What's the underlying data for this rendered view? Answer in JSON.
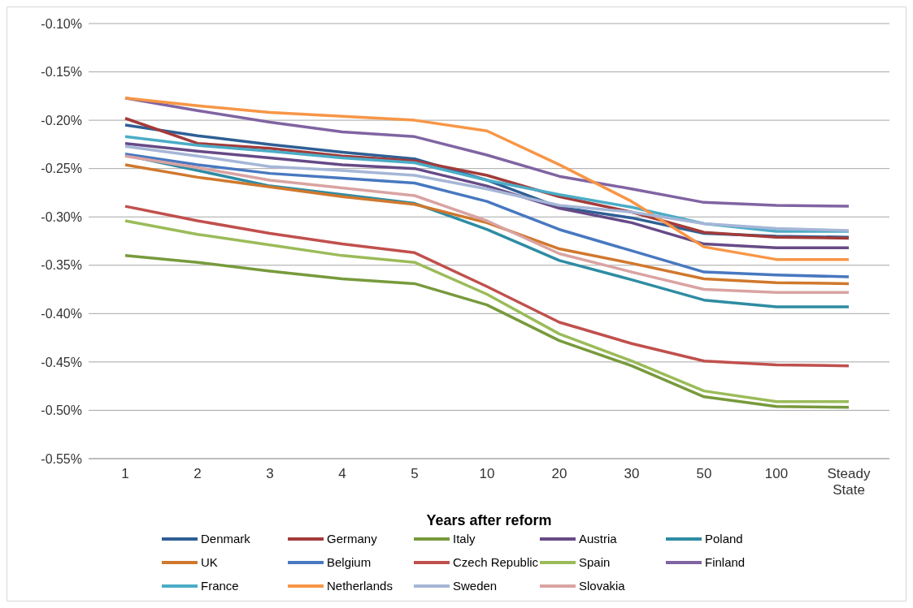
{
  "chart_data": {
    "type": "line",
    "xlabel": "Years after reform",
    "categories": [
      "1",
      "2",
      "3",
      "4",
      "5",
      "10",
      "20",
      "30",
      "50",
      "100",
      "Steady State"
    ],
    "ylim": [
      -0.55,
      -0.1
    ],
    "yticks": [
      {
        "value": -0.1,
        "label": "-0.10%"
      },
      {
        "value": -0.15,
        "label": "-0.15%"
      },
      {
        "value": -0.2,
        "label": "-0.20%"
      },
      {
        "value": -0.25,
        "label": "-0.25%"
      },
      {
        "value": -0.3,
        "label": "-0.30%"
      },
      {
        "value": -0.35,
        "label": "-0.35%"
      },
      {
        "value": -0.4,
        "label": "-0.40%"
      },
      {
        "value": -0.45,
        "label": "-0.45%"
      },
      {
        "value": -0.5,
        "label": "-0.50%"
      },
      {
        "value": -0.55,
        "label": "-0.55%"
      }
    ],
    "grid": "y",
    "legend": "bottom",
    "marker": "none",
    "line_style": "solid",
    "series": [
      {
        "name": "Denmark",
        "color": "#2e5f95",
        "values": [
          -0.205,
          -0.216,
          -0.225,
          -0.233,
          -0.24,
          -0.262,
          -0.29,
          -0.301,
          -0.317,
          -0.32,
          -0.321
        ]
      },
      {
        "name": "Germany",
        "color": "#a33b3a",
        "values": [
          -0.198,
          -0.224,
          -0.229,
          -0.237,
          -0.242,
          -0.257,
          -0.279,
          -0.295,
          -0.316,
          -0.321,
          -0.322
        ]
      },
      {
        "name": "Italy",
        "color": "#779a3c",
        "values": [
          -0.34,
          -0.347,
          -0.356,
          -0.364,
          -0.369,
          -0.391,
          -0.428,
          -0.454,
          -0.486,
          -0.496,
          -0.497
        ]
      },
      {
        "name": "Austria",
        "color": "#664a86",
        "values": [
          -0.224,
          -0.232,
          -0.239,
          -0.246,
          -0.25,
          -0.268,
          -0.291,
          -0.306,
          -0.328,
          -0.332,
          -0.332
        ]
      },
      {
        "name": "Poland",
        "color": "#2e8ca3",
        "values": [
          -0.236,
          -0.252,
          -0.268,
          -0.277,
          -0.286,
          -0.313,
          -0.345,
          -0.365,
          -0.386,
          -0.393,
          -0.393
        ]
      },
      {
        "name": "UK",
        "color": "#d0782d",
        "values": [
          -0.246,
          -0.259,
          -0.269,
          -0.279,
          -0.287,
          -0.306,
          -0.333,
          -0.348,
          -0.364,
          -0.368,
          -0.369
        ]
      },
      {
        "name": "Belgium",
        "color": "#4878c0",
        "values": [
          -0.235,
          -0.246,
          -0.255,
          -0.26,
          -0.265,
          -0.284,
          -0.313,
          -0.335,
          -0.357,
          -0.36,
          -0.362
        ]
      },
      {
        "name": "Czech Republic",
        "color": "#c0504d",
        "values": [
          -0.289,
          -0.304,
          -0.317,
          -0.328,
          -0.337,
          -0.372,
          -0.409,
          -0.431,
          -0.449,
          -0.453,
          -0.454
        ]
      },
      {
        "name": "Spain",
        "color": "#9bbb59",
        "values": [
          -0.304,
          -0.318,
          -0.329,
          -0.34,
          -0.347,
          -0.38,
          -0.421,
          -0.449,
          -0.48,
          -0.491,
          -0.491
        ]
      },
      {
        "name": "Finland",
        "color": "#8064a2",
        "values": [
          -0.177,
          -0.19,
          -0.202,
          -0.212,
          -0.217,
          -0.236,
          -0.258,
          -0.271,
          -0.285,
          -0.288,
          -0.289
        ]
      },
      {
        "name": "France",
        "color": "#4bacc6",
        "values": [
          -0.217,
          -0.226,
          -0.232,
          -0.239,
          -0.244,
          -0.262,
          -0.277,
          -0.29,
          -0.307,
          -0.315,
          -0.315
        ]
      },
      {
        "name": "Netherlands",
        "color": "#f79646",
        "values": [
          -0.177,
          -0.185,
          -0.192,
          -0.196,
          -0.2,
          -0.211,
          -0.246,
          -0.284,
          -0.331,
          -0.344,
          -0.344
        ]
      },
      {
        "name": "Sweden",
        "color": "#a5b6d7",
        "values": [
          -0.227,
          -0.237,
          -0.248,
          -0.252,
          -0.257,
          -0.271,
          -0.288,
          -0.295,
          -0.307,
          -0.312,
          -0.314
        ]
      },
      {
        "name": "Slovakia",
        "color": "#d9a3a2",
        "values": [
          -0.237,
          -0.249,
          -0.262,
          -0.27,
          -0.278,
          -0.304,
          -0.338,
          -0.357,
          -0.375,
          -0.378,
          -0.378
        ]
      }
    ]
  }
}
